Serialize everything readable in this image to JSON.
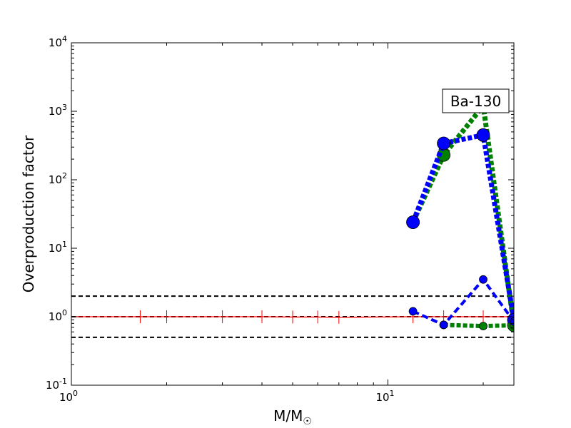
{
  "chart_data": {
    "type": "line",
    "xscale": "log",
    "yscale": "log",
    "xlim": [
      1,
      25
    ],
    "ylim": [
      0.1,
      10000
    ],
    "xlabel": "M/M",
    "xlabel_sub": "☉",
    "ylabel": "Overproduction factor",
    "x_ticks": [
      {
        "value": 1,
        "base": "10",
        "exp": "0"
      },
      {
        "value": 10,
        "base": "10",
        "exp": "1"
      }
    ],
    "y_ticks": [
      {
        "value": 0.1,
        "base": "10",
        "exp": "-1"
      },
      {
        "value": 1,
        "base": "10",
        "exp": "0"
      },
      {
        "value": 10,
        "base": "10",
        "exp": "1"
      },
      {
        "value": 100,
        "base": "10",
        "exp": "2"
      },
      {
        "value": 1000,
        "base": "10",
        "exp": "3"
      },
      {
        "value": 10000,
        "base": "10",
        "exp": "4"
      }
    ],
    "annotation": "Ba-130",
    "hlines": [
      {
        "y": 2.0,
        "color": "#000000",
        "style": "dashed"
      },
      {
        "y": 1.0,
        "color": "#000000",
        "style": "dashed"
      },
      {
        "y": 0.5,
        "color": "#000000",
        "style": "dashed"
      }
    ],
    "series": [
      {
        "color": "#ff0000",
        "style": "solid",
        "marker": "vline",
        "x": [
          1.0,
          1.65,
          2.0,
          3.0,
          4.0,
          5.0,
          6.0,
          7.0,
          12.0,
          15.0,
          20.0,
          25.0
        ],
        "y": [
          1.0,
          1.0,
          1.0,
          1.0,
          1.0,
          0.99,
          0.99,
          0.98,
          1.0,
          1.0,
          1.0,
          1.0
        ]
      },
      {
        "color": "#008000",
        "style": "dotted",
        "marker": "circle",
        "marker_size": "large",
        "x": [
          12.0,
          15.0,
          20.0,
          25.0
        ],
        "y": [
          24,
          230,
          1200,
          0.75
        ]
      },
      {
        "color": "#0000ff",
        "style": "dotted",
        "marker": "circle",
        "marker_size": "large",
        "x": [
          12.0,
          15.0,
          20.0,
          25.0
        ],
        "y": [
          24,
          340,
          450,
          0.9
        ]
      },
      {
        "color": "#008000",
        "style": "dotted",
        "marker": "circle",
        "marker_size": "small",
        "x": [
          15.0,
          20.0,
          25.0
        ],
        "y": [
          0.76,
          0.73,
          0.75
        ]
      },
      {
        "color": "#0000ff",
        "style": "dashed",
        "marker": "circle",
        "marker_size": "small",
        "x": [
          12.0,
          15.0,
          20.0,
          25.0
        ],
        "y": [
          1.2,
          0.76,
          3.5,
          0.85
        ]
      }
    ]
  }
}
